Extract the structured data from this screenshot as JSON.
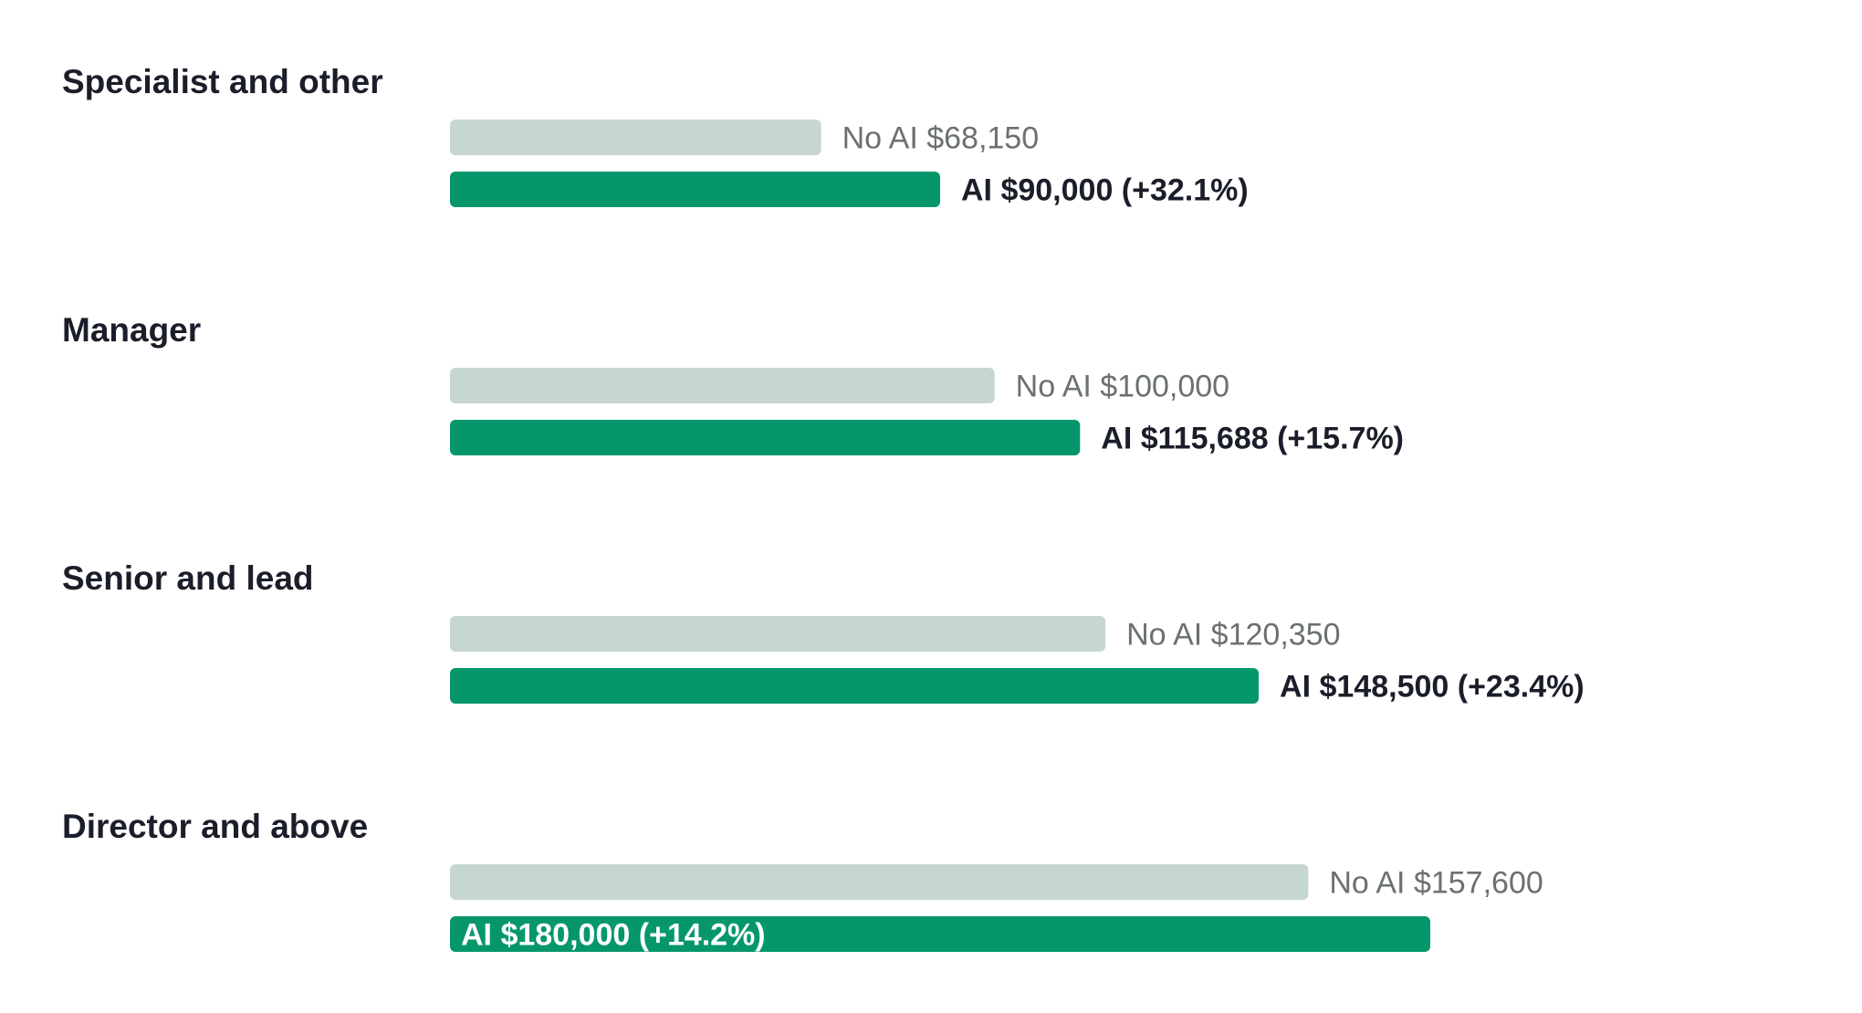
{
  "chart_data": {
    "type": "bar",
    "orientation": "horizontal",
    "categories": [
      "Specialist and other",
      "Manager",
      "Senior and lead",
      "Director and above"
    ],
    "series": [
      {
        "name": "No AI",
        "values": [
          68150,
          100000,
          120350,
          157600
        ],
        "color": "#c5d7cf"
      },
      {
        "name": "AI",
        "values": [
          90000,
          115688,
          148500,
          180000
        ],
        "color": "#05976b"
      }
    ],
    "labels": {
      "no_ai": [
        "No AI $68,150",
        "No AI $100,000",
        "No AI $120,350",
        "No AI $157,600"
      ],
      "ai": [
        "AI $90,000 (+32.1%)",
        "AI $115,688 (+15.7%)",
        "AI $148,500 (+23.4%)",
        "AI $180,000 (+14.2%)"
      ]
    },
    "xlim": [
      0,
      180000
    ],
    "grid": false,
    "legend": "none",
    "title": "",
    "xlabel": "",
    "ylabel": ""
  }
}
